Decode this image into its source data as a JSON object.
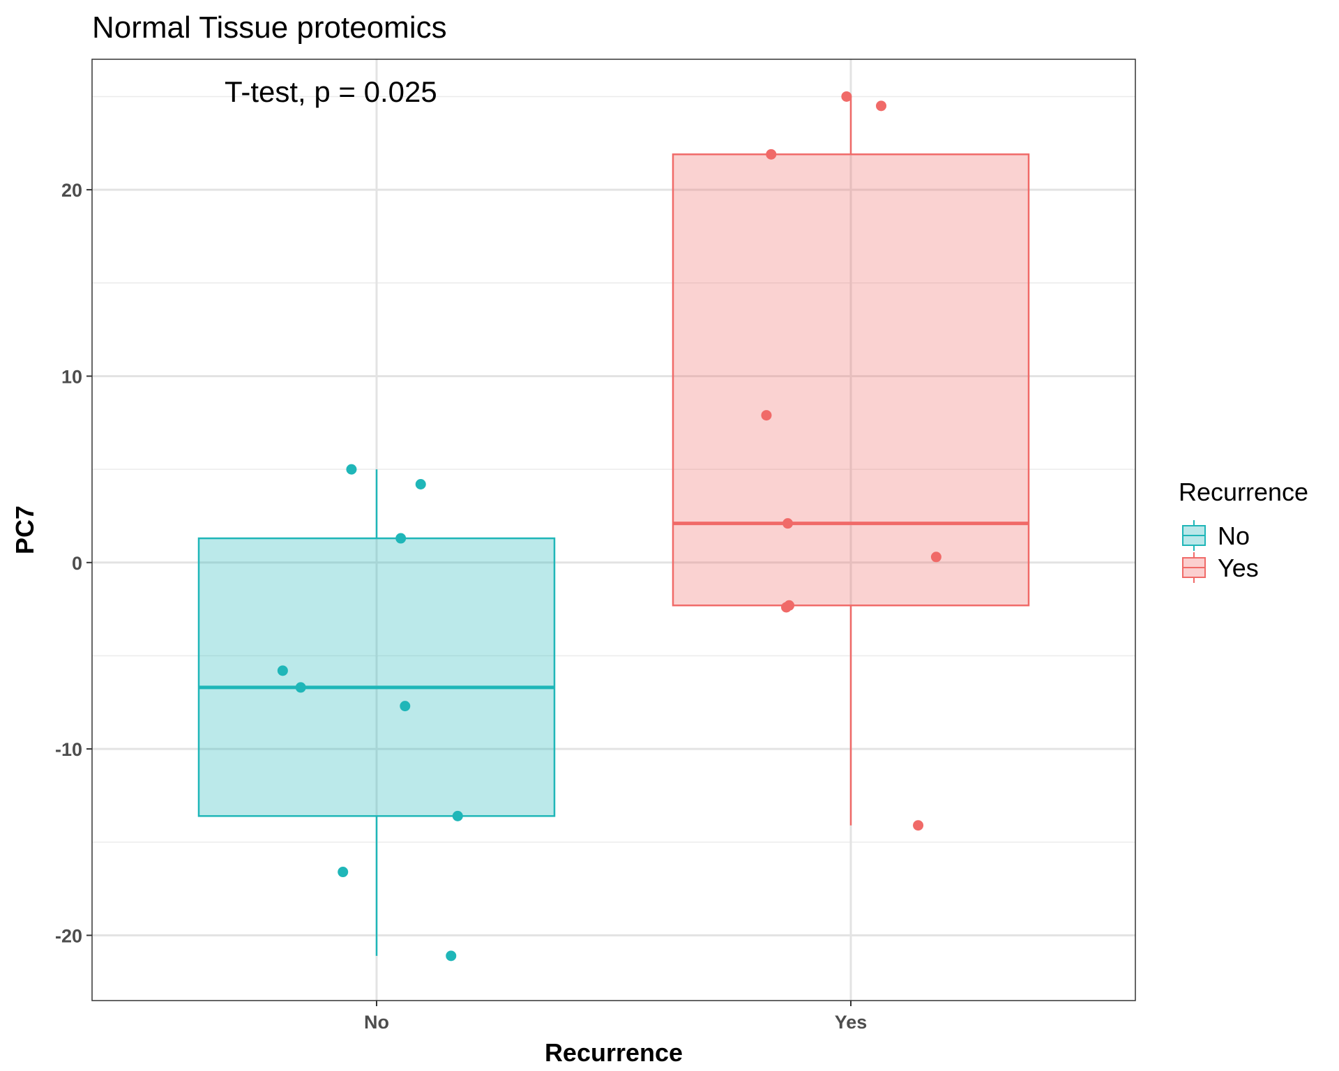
{
  "chart_data": {
    "type": "boxplot",
    "title": "Normal Tissue proteomics",
    "annotation": "T-test, p = 0.025",
    "xlabel": "Recurrence",
    "ylabel": "PC7",
    "categories": [
      "No",
      "Yes"
    ],
    "ylim": [
      -23.5,
      27
    ],
    "yticks": [
      -20,
      -10,
      0,
      10,
      20
    ],
    "ytick_labels": [
      "-20",
      "-10",
      "0",
      "10",
      "20"
    ],
    "grid": true,
    "legend": {
      "title": "Recurrence",
      "position": "right",
      "entries": [
        "No",
        "Yes"
      ]
    },
    "series": [
      {
        "name": "No",
        "color": "#1FB6B8",
        "fill": "#BAE7E9",
        "box": {
          "q1": -13.6,
          "median": -6.7,
          "q3": 1.3,
          "whisker_low": -21.1,
          "whisker_high": 5.0
        },
        "points": [
          {
            "x": -0.053,
            "y": 5.0
          },
          {
            "x": 0.093,
            "y": 4.2
          },
          {
            "x": 0.051,
            "y": 1.3
          },
          {
            "x": -0.198,
            "y": -5.8
          },
          {
            "x": -0.16,
            "y": -6.7
          },
          {
            "x": 0.06,
            "y": -7.7
          },
          {
            "x": 0.171,
            "y": -13.6
          },
          {
            "x": -0.071,
            "y": -16.6
          },
          {
            "x": 0.157,
            "y": -21.1
          }
        ]
      },
      {
        "name": "Yes",
        "color": "#F06A68",
        "fill": "#FBCFCF",
        "box": {
          "q1": -2.3,
          "median": 2.1,
          "q3": 21.9,
          "whisker_low": -14.1,
          "whisker_high": 25.0
        },
        "points": [
          {
            "x": -0.009,
            "y": 25.0
          },
          {
            "x": 0.064,
            "y": 24.5
          },
          {
            "x": -0.168,
            "y": 21.9
          },
          {
            "x": -0.178,
            "y": 7.9
          },
          {
            "x": -0.133,
            "y": 2.1
          },
          {
            "x": 0.18,
            "y": 0.3
          },
          {
            "x": -0.13,
            "y": -2.3
          },
          {
            "x": -0.136,
            "y": -2.4
          },
          {
            "x": 0.142,
            "y": -14.1
          }
        ]
      }
    ]
  }
}
